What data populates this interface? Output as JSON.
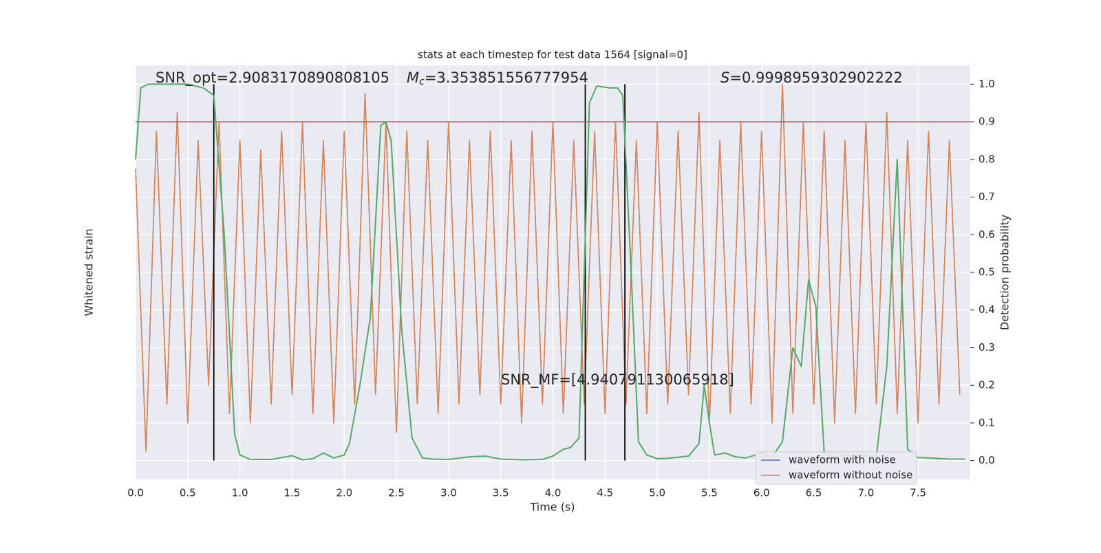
{
  "chart_data": {
    "type": "line",
    "title": "stats at each timestep for test data 1564 [signal=0]",
    "xlabel": "Time (s)",
    "ylabel": "Whitened strain",
    "y2label": "Detection probability",
    "xlim": [
      0,
      8
    ],
    "xticks": [
      {
        "value": 0,
        "label": "0.0"
      },
      0.5,
      {
        "value": 1,
        "label": "1.0"
      },
      1.5,
      {
        "value": 2,
        "label": "2.0"
      },
      2.5,
      {
        "value": 3,
        "label": "3.0"
      },
      3.5,
      {
        "value": 4,
        "label": "4.0"
      },
      4.5,
      {
        "value": 5,
        "label": "5.0"
      },
      5.5,
      {
        "value": 6,
        "label": "6.0"
      },
      6.5,
      {
        "value": 7,
        "label": "7.0"
      },
      7.5
    ],
    "ylim": [
      -1.1,
      1.1
    ],
    "y2lim": [
      -0.05,
      1.05
    ],
    "y2ticks": [
      {
        "value": 0,
        "label": "0.0"
      },
      0.1,
      0.2,
      0.3,
      0.4,
      0.5,
      0.6,
      0.7,
      0.8,
      0.9,
      {
        "value": 1,
        "label": "1.0"
      }
    ],
    "grid": true,
    "legend": "lower right",
    "x": [
      0,
      0.1,
      0.2,
      0.3,
      0.4,
      0.5,
      0.6,
      0.7,
      0.8,
      0.9,
      1.0,
      1.1,
      1.2,
      1.3,
      1.4,
      1.5,
      1.6,
      1.7,
      1.8,
      1.9,
      2.0,
      2.1,
      2.2,
      2.3,
      2.4,
      2.5,
      2.6,
      2.7,
      2.8,
      2.9,
      3.0,
      3.1,
      3.2,
      3.3,
      3.4,
      3.5,
      3.6,
      3.7,
      3.8,
      3.9,
      4.0,
      4.1,
      4.2,
      4.3,
      4.4,
      4.5,
      4.6,
      4.7,
      4.8,
      4.9,
      5.0,
      5.1,
      5.2,
      5.3,
      5.4,
      5.5,
      5.6,
      5.7,
      5.8,
      5.9,
      6.0,
      6.1,
      6.2,
      6.3,
      6.4,
      6.5,
      6.6,
      6.7,
      6.8,
      6.9,
      7.0,
      7.1,
      7.2,
      7.3,
      7.4,
      7.5,
      7.6,
      7.7,
      7.8,
      7.9
    ],
    "series": [
      {
        "name": "waveform with noise",
        "color": "#4c72b0",
        "values": [
          0.55,
          -0.95,
          0.75,
          -0.7,
          0.85,
          -0.8,
          0.7,
          -0.6,
          0.8,
          -0.75,
          0.7,
          -0.8,
          0.65,
          -0.7,
          0.75,
          -0.65,
          0.8,
          -0.75,
          0.7,
          -0.8,
          0.75,
          -0.7,
          0.95,
          -0.65,
          0.8,
          -0.85,
          0.75,
          -0.7,
          0.7,
          -0.75,
          0.8,
          -0.7,
          0.7,
          -0.65,
          0.75,
          -0.7,
          0.7,
          -0.8,
          0.75,
          -0.7,
          0.8,
          -0.75,
          0.7,
          -0.7,
          0.75,
          -0.75,
          0.8,
          -0.7,
          0.7,
          -0.75,
          0.8,
          -0.7,
          0.75,
          -0.65,
          0.85,
          -0.8,
          0.7,
          -0.75,
          0.8,
          -0.7,
          0.75,
          -0.8,
          1.0,
          -0.75,
          0.8,
          -0.7,
          0.75,
          -0.8,
          0.7,
          -0.75,
          0.8,
          -0.7,
          0.85,
          -0.75,
          0.7,
          -0.8,
          0.75,
          -0.7,
          0.7,
          -0.65
        ]
      },
      {
        "name": "waveform without noise",
        "color": "#dd8452",
        "values": [
          0.55,
          -0.95,
          0.75,
          -0.7,
          0.85,
          -0.8,
          0.7,
          -0.6,
          0.8,
          -0.75,
          0.7,
          -0.8,
          0.65,
          -0.7,
          0.75,
          -0.65,
          0.8,
          -0.75,
          0.7,
          -0.8,
          0.75,
          -0.7,
          0.95,
          -0.65,
          0.8,
          -0.85,
          0.75,
          -0.7,
          0.7,
          -0.75,
          0.8,
          -0.7,
          0.7,
          -0.65,
          0.75,
          -0.7,
          0.7,
          -0.8,
          0.75,
          -0.7,
          0.8,
          -0.75,
          0.7,
          -0.7,
          0.75,
          -0.75,
          0.8,
          -0.7,
          0.7,
          -0.75,
          0.8,
          -0.7,
          0.75,
          -0.65,
          0.85,
          -0.8,
          0.7,
          -0.75,
          0.8,
          -0.7,
          0.75,
          -0.8,
          1.0,
          -0.75,
          0.8,
          -0.7,
          0.75,
          -0.8,
          0.7,
          -0.75,
          0.8,
          -0.7,
          0.85,
          -0.75,
          0.7,
          -0.8,
          0.75,
          -0.7,
          0.7,
          -0.65
        ]
      }
    ],
    "detection": {
      "axis": "y2",
      "color": "#55a868",
      "x": [
        0,
        0.05,
        0.12,
        0.3,
        0.5,
        0.65,
        0.75,
        0.85,
        0.95,
        1.0,
        1.1,
        1.3,
        1.5,
        1.6,
        1.7,
        1.8,
        1.9,
        2.0,
        2.05,
        2.15,
        2.25,
        2.35,
        2.4,
        2.45,
        2.55,
        2.65,
        2.75,
        2.85,
        3.0,
        3.2,
        3.35,
        3.5,
        3.7,
        3.9,
        4.0,
        4.1,
        4.17,
        4.25,
        4.3,
        4.35,
        4.42,
        4.55,
        4.62,
        4.67,
        4.75,
        4.82,
        4.9,
        5.0,
        5.1,
        5.3,
        5.4,
        5.45,
        5.5,
        5.55,
        5.65,
        5.75,
        5.85,
        6.0,
        6.1,
        6.2,
        6.3,
        6.38,
        6.45,
        6.52,
        6.6,
        6.7,
        6.9,
        7.1,
        7.2,
        7.3,
        7.4,
        7.5,
        7.6,
        7.8,
        7.95
      ],
      "values": [
        0.8,
        0.99,
        1.0,
        1.0,
        1.0,
        0.99,
        0.97,
        0.6,
        0.07,
        0.015,
        0.003,
        0.003,
        0.013,
        0.002,
        0.005,
        0.02,
        0.007,
        0.015,
        0.045,
        0.2,
        0.38,
        0.89,
        0.9,
        0.85,
        0.35,
        0.06,
        0.007,
        0.004,
        0.003,
        0.01,
        0.012,
        0.004,
        0.002,
        0.003,
        0.012,
        0.03,
        0.035,
        0.06,
        0.5,
        0.95,
        0.995,
        0.99,
        0.99,
        0.97,
        0.5,
        0.05,
        0.015,
        0.005,
        0.006,
        0.012,
        0.045,
        0.2,
        0.1,
        0.015,
        0.02,
        0.01,
        0.007,
        0.02,
        0.01,
        0.05,
        0.3,
        0.25,
        0.48,
        0.41,
        0.02,
        0.01,
        0.015,
        0.01,
        0.25,
        0.8,
        0.03,
        0.008,
        0.007,
        0.004,
        0.004
      ]
    },
    "vlines": {
      "color": "#000000",
      "span": [
        0,
        1
      ],
      "x": [
        0.75,
        4.31,
        4.69
      ]
    },
    "threshold": {
      "value": 0.9,
      "color": "#c44e52"
    },
    "annotations": [
      {
        "text": "SNR_opt=2.9083170890808105"
      },
      {
        "italic": "M",
        "sub": "c",
        "text": "=3.353851556777954"
      },
      {
        "italic": "S",
        "text": "=0.9998959302902222"
      },
      {
        "text": "SNR_MF=[4.940791130065918]"
      }
    ]
  }
}
